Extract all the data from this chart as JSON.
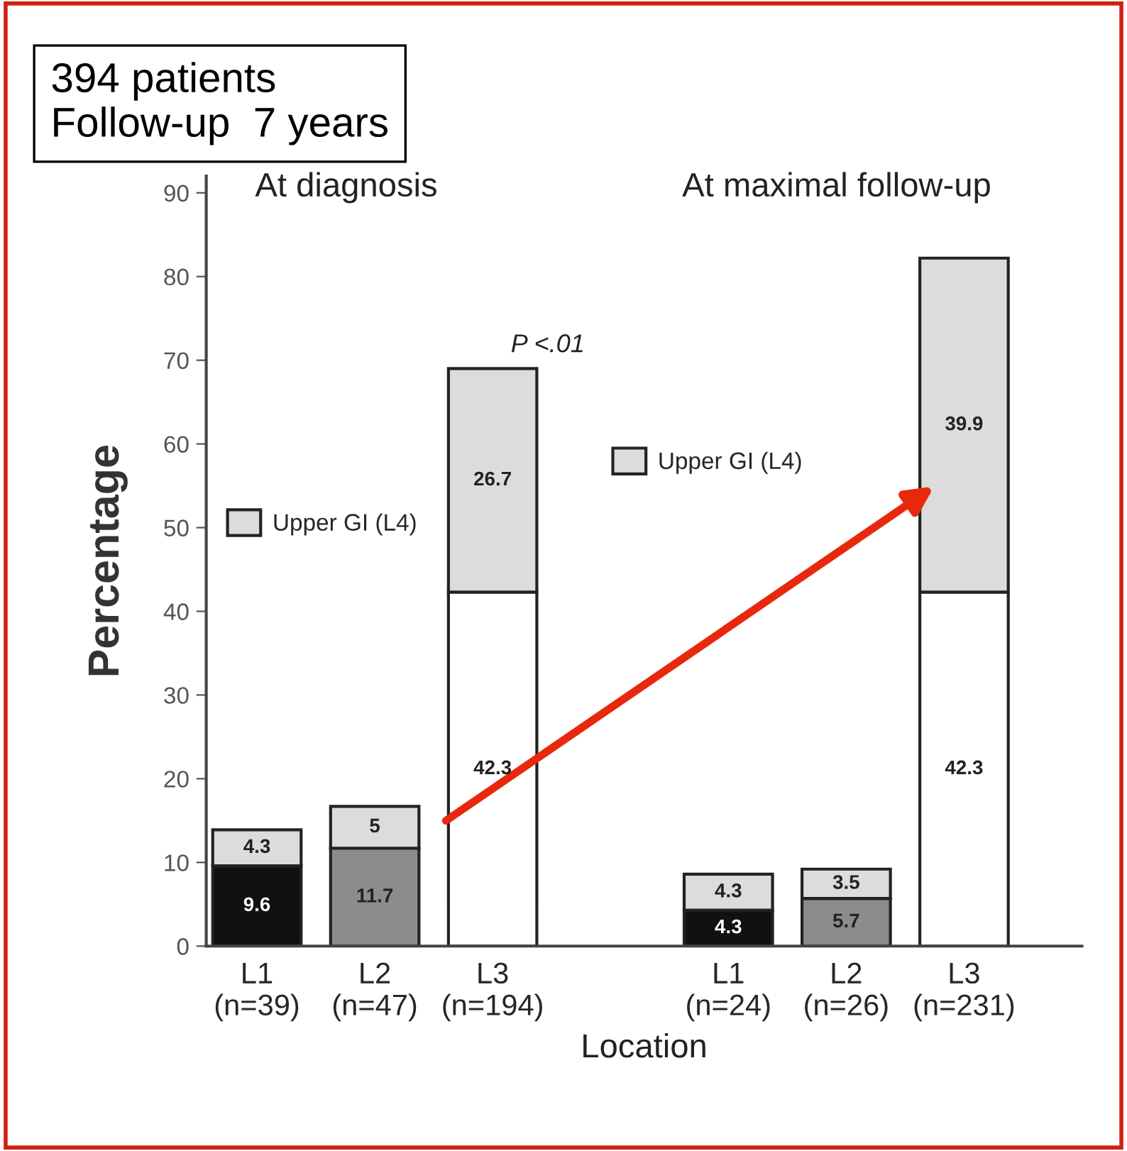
{
  "chart_data": {
    "type": "bar",
    "title": "394 patients\nFollow-up  7 years",
    "xlabel": "Location",
    "ylabel": "Percentage",
    "categories": [
      "L1\n(n=39)",
      "L2\n(n=47)",
      "L3\n(n=194)",
      null,
      "L1\n(n=24)",
      "L2\n(n=26)",
      "L3\n(n=231)"
    ],
    "stacked": true,
    "series": [
      {
        "colors": [
          "#111111",
          "#8c8c8c",
          "#ffffff",
          "#ffffff",
          "#111111",
          "#8c8c8c",
          "#ffffff"
        ],
        "values": [
          9.6,
          11.7,
          42.3,
          null,
          4.3,
          5.7,
          42.3
        ]
      },
      {
        "name": "Upper GI (L4)",
        "color": "#dcdcdc",
        "values": [
          4.3,
          5,
          26.7,
          null,
          4.3,
          3.5,
          39.9
        ]
      }
    ],
    "ylim": [
      0,
      92
    ],
    "yticks": [
      0,
      10,
      20,
      30,
      40,
      50,
      60,
      70,
      80,
      90
    ],
    "data_labels": true,
    "legend": "left",
    "grid": false,
    "annotations": [
      "At diagnosis",
      "At maximal follow-up",
      "P <.01"
    ]
  }
}
